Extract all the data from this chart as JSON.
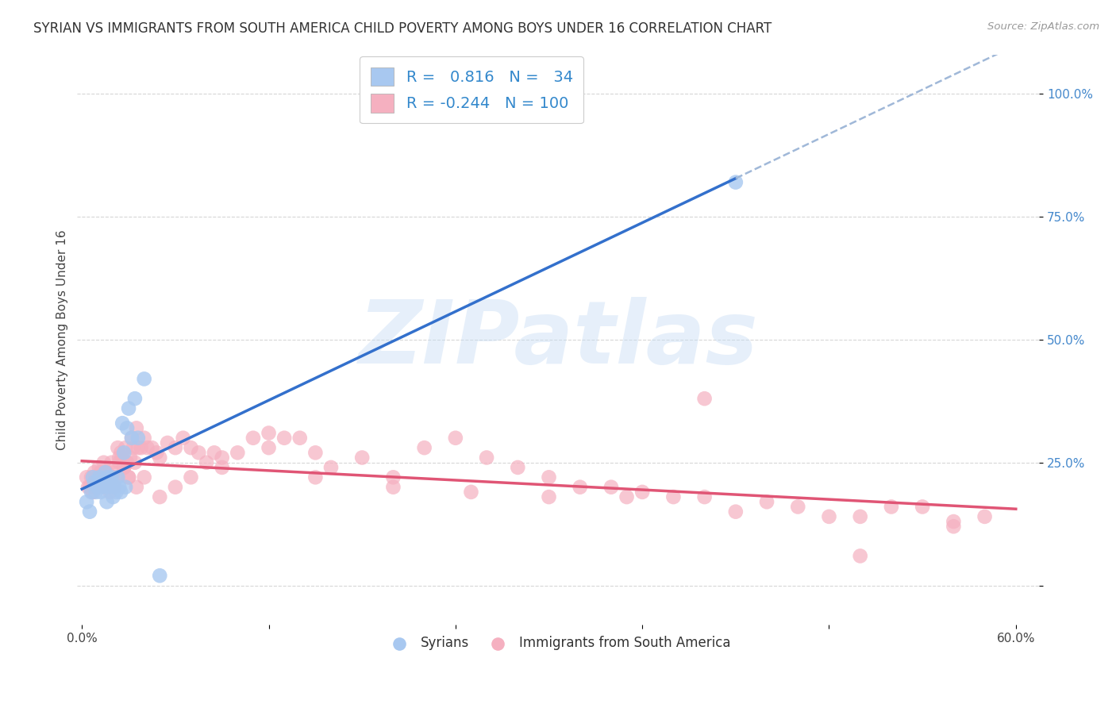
{
  "title": "SYRIAN VS IMMIGRANTS FROM SOUTH AMERICA CHILD POVERTY AMONG BOYS UNDER 16 CORRELATION CHART",
  "source": "Source: ZipAtlas.com",
  "ylabel": "Child Poverty Among Boys Under 16",
  "watermark": "ZIPatlas",
  "background_color": "#ffffff",
  "xlim": [
    -0.003,
    0.615
  ],
  "ylim": [
    -0.08,
    1.08
  ],
  "xtick_positions": [
    0.0,
    0.12,
    0.24,
    0.36,
    0.48,
    0.6
  ],
  "xtick_labels": [
    "0.0%",
    "",
    "",
    "",
    "",
    "60.0%"
  ],
  "ytick_positions": [
    0.0,
    0.25,
    0.5,
    0.75,
    1.0
  ],
  "ytick_labels": [
    "",
    "25.0%",
    "50.0%",
    "75.0%",
    "100.0%"
  ],
  "syrian_color": "#a8c8f0",
  "south_america_color": "#f5b0c0",
  "syrian_line_color": "#3370cc",
  "south_america_line_color": "#e05575",
  "dashed_line_color": "#a0b8d8",
  "title_fontsize": 12,
  "label_fontsize": 11,
  "tick_fontsize": 11,
  "legend_fontsize": 14,
  "syrian_x": [
    0.003,
    0.005,
    0.006,
    0.007,
    0.008,
    0.009,
    0.01,
    0.011,
    0.012,
    0.013,
    0.014,
    0.015,
    0.016,
    0.016,
    0.017,
    0.018,
    0.019,
    0.02,
    0.021,
    0.022,
    0.023,
    0.024,
    0.025,
    0.026,
    0.027,
    0.028,
    0.029,
    0.03,
    0.032,
    0.034,
    0.036,
    0.04,
    0.05,
    0.42
  ],
  "syrian_y": [
    0.17,
    0.15,
    0.19,
    0.22,
    0.21,
    0.19,
    0.2,
    0.22,
    0.19,
    0.21,
    0.2,
    0.23,
    0.22,
    0.17,
    0.2,
    0.21,
    0.22,
    0.18,
    0.2,
    0.19,
    0.22,
    0.2,
    0.19,
    0.33,
    0.27,
    0.2,
    0.32,
    0.36,
    0.3,
    0.38,
    0.3,
    0.42,
    0.02,
    0.82
  ],
  "sa_x": [
    0.003,
    0.005,
    0.006,
    0.007,
    0.008,
    0.009,
    0.01,
    0.011,
    0.012,
    0.013,
    0.014,
    0.015,
    0.016,
    0.017,
    0.018,
    0.019,
    0.02,
    0.021,
    0.022,
    0.023,
    0.024,
    0.025,
    0.026,
    0.027,
    0.028,
    0.029,
    0.03,
    0.031,
    0.032,
    0.033,
    0.034,
    0.035,
    0.036,
    0.038,
    0.04,
    0.042,
    0.045,
    0.048,
    0.05,
    0.055,
    0.06,
    0.065,
    0.07,
    0.075,
    0.08,
    0.085,
    0.09,
    0.1,
    0.11,
    0.12,
    0.13,
    0.14,
    0.15,
    0.16,
    0.18,
    0.2,
    0.22,
    0.24,
    0.26,
    0.28,
    0.3,
    0.32,
    0.34,
    0.36,
    0.38,
    0.4,
    0.42,
    0.44,
    0.46,
    0.48,
    0.5,
    0.52,
    0.54,
    0.56,
    0.58,
    0.004,
    0.007,
    0.009,
    0.012,
    0.015,
    0.018,
    0.021,
    0.024,
    0.027,
    0.03,
    0.035,
    0.04,
    0.05,
    0.06,
    0.07,
    0.09,
    0.12,
    0.15,
    0.2,
    0.25,
    0.3,
    0.35,
    0.4,
    0.5,
    0.56
  ],
  "sa_y": [
    0.22,
    0.2,
    0.22,
    0.19,
    0.23,
    0.2,
    0.22,
    0.24,
    0.21,
    0.22,
    0.25,
    0.2,
    0.23,
    0.22,
    0.19,
    0.25,
    0.23,
    0.2,
    0.22,
    0.28,
    0.25,
    0.27,
    0.26,
    0.24,
    0.28,
    0.25,
    0.22,
    0.26,
    0.3,
    0.28,
    0.25,
    0.32,
    0.28,
    0.28,
    0.3,
    0.28,
    0.28,
    0.27,
    0.26,
    0.29,
    0.28,
    0.3,
    0.28,
    0.27,
    0.25,
    0.27,
    0.26,
    0.27,
    0.3,
    0.31,
    0.3,
    0.3,
    0.27,
    0.24,
    0.26,
    0.22,
    0.28,
    0.3,
    0.26,
    0.24,
    0.22,
    0.2,
    0.2,
    0.19,
    0.18,
    0.18,
    0.15,
    0.17,
    0.16,
    0.14,
    0.14,
    0.16,
    0.16,
    0.13,
    0.14,
    0.2,
    0.19,
    0.21,
    0.23,
    0.22,
    0.2,
    0.22,
    0.26,
    0.24,
    0.22,
    0.2,
    0.22,
    0.18,
    0.2,
    0.22,
    0.24,
    0.28,
    0.22,
    0.2,
    0.19,
    0.18,
    0.18,
    0.38,
    0.06,
    0.12
  ]
}
